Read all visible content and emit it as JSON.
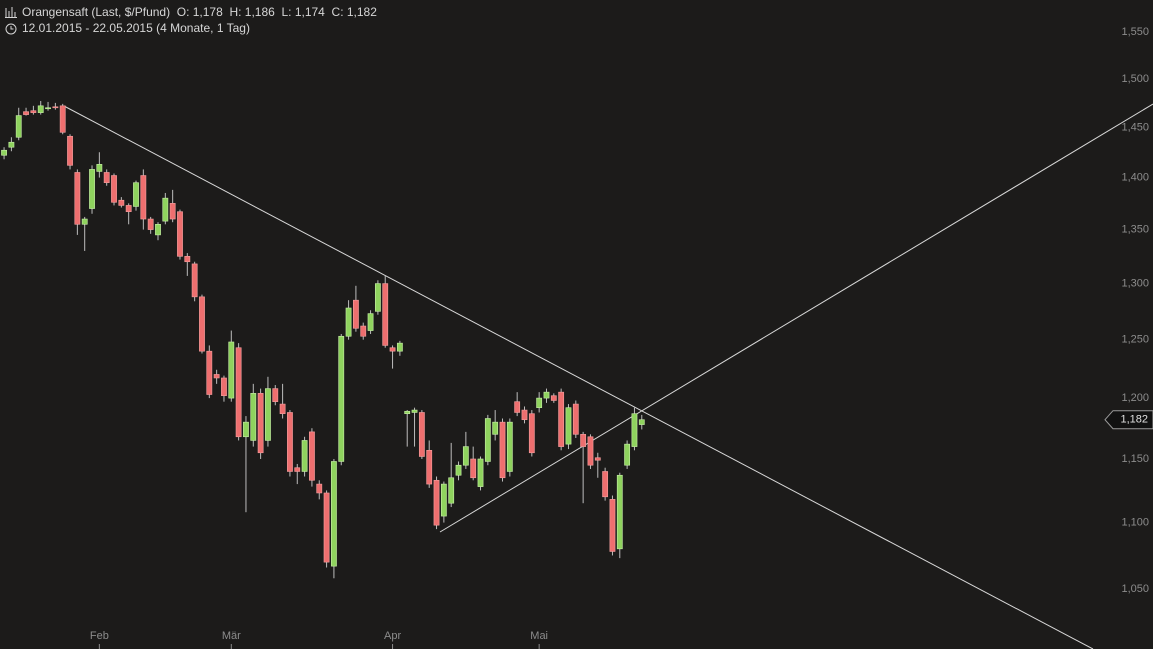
{
  "chart_data": {
    "type": "candlestick",
    "title": "Orangensaft (Last, $/Pfund)  O: 1,178  H: 1,186  L: 1,174  C: 1,182",
    "subtitle": "12.01.2015 - 22.05.2015 (4 Monate, 1 Tag)",
    "categories": [
      null,
      null,
      null,
      null,
      null,
      null,
      null,
      null,
      null,
      null,
      null,
      null,
      null,
      "Feb",
      null,
      null,
      null,
      null,
      null,
      null,
      null,
      null,
      null,
      null,
      null,
      null,
      null,
      null,
      null,
      null,
      null,
      "Mär",
      null,
      null,
      null,
      null,
      null,
      null,
      null,
      null,
      null,
      null,
      null,
      null,
      null,
      null,
      null,
      null,
      null,
      null,
      null,
      null,
      null,
      "Apr",
      null,
      null,
      null,
      null,
      null,
      null,
      null,
      null,
      null,
      null,
      null,
      null,
      null,
      null,
      null,
      null,
      null,
      null,
      null,
      "Mai",
      null,
      null,
      null,
      null,
      null,
      null,
      null,
      null,
      null,
      null,
      null,
      null,
      null,
      null
    ],
    "open": [
      1.422,
      1.43,
      1.44,
      1.466,
      1.467,
      1.465,
      1.469,
      1.471,
      1.472,
      1.441,
      1.405,
      1.355,
      1.37,
      1.406,
      1.405,
      1.402,
      1.378,
      1.373,
      1.372,
      1.402,
      1.36,
      1.345,
      1.358,
      1.375,
      1.367,
      1.325,
      1.318,
      1.288,
      1.24,
      1.22,
      1.217,
      1.2,
      1.243,
      1.168,
      1.165,
      1.204,
      1.165,
      1.208,
      1.195,
      1.188,
      1.143,
      1.14,
      1.172,
      1.13,
      1.123,
      1.067,
      1.148,
      1.253,
      1.285,
      1.262,
      1.258,
      1.275,
      1.3,
      1.243,
      1.24,
      1.187,
      1.188,
      1.188,
      1.157,
      1.133,
      1.105,
      1.115,
      1.137,
      1.145,
      1.15,
      1.128,
      1.148,
      1.17,
      1.18,
      1.14,
      1.197,
      1.19,
      1.187,
      1.192,
      1.2,
      1.202,
      1.205,
      1.162,
      1.195,
      1.17,
      1.168,
      1.151,
      1.14,
      1.118,
      1.08,
      1.145,
      1.16,
      1.178
    ],
    "high": [
      1.43,
      1.44,
      1.47,
      1.47,
      1.472,
      1.477,
      1.476,
      1.475,
      1.474,
      1.443,
      1.408,
      1.362,
      1.412,
      1.425,
      1.408,
      1.404,
      1.381,
      1.375,
      1.397,
      1.408,
      1.362,
      1.357,
      1.385,
      1.388,
      1.369,
      1.328,
      1.32,
      1.29,
      1.245,
      1.224,
      1.219,
      1.258,
      1.247,
      1.185,
      1.212,
      1.208,
      1.218,
      1.211,
      1.212,
      1.19,
      1.146,
      1.168,
      1.175,
      1.133,
      1.125,
      1.15,
      1.255,
      1.285,
      1.298,
      1.265,
      1.276,
      1.303,
      1.307,
      1.245,
      1.249,
      1.19,
      1.192,
      1.19,
      1.165,
      1.136,
      1.132,
      1.163,
      1.148,
      1.172,
      1.16,
      1.152,
      1.186,
      1.19,
      1.183,
      1.183,
      1.205,
      1.193,
      1.19,
      1.205,
      1.208,
      1.204,
      1.208,
      1.195,
      1.198,
      1.172,
      1.17,
      1.155,
      1.143,
      1.121,
      1.139,
      1.165,
      1.192,
      1.186
    ],
    "low": [
      1.418,
      1.426,
      1.437,
      1.462,
      1.463,
      1.463,
      1.467,
      1.468,
      1.443,
      1.408,
      1.345,
      1.33,
      1.365,
      1.4,
      1.392,
      1.373,
      1.371,
      1.355,
      1.368,
      1.35,
      1.346,
      1.34,
      1.355,
      1.357,
      1.322,
      1.307,
      1.284,
      1.238,
      1.2,
      1.212,
      1.197,
      1.197,
      1.165,
      1.108,
      1.16,
      1.15,
      1.16,
      1.194,
      1.183,
      1.136,
      1.13,
      1.136,
      1.128,
      1.118,
      1.066,
      1.058,
      1.145,
      1.25,
      1.257,
      1.25,
      1.255,
      1.272,
      1.243,
      1.225,
      1.236,
      1.16,
      1.16,
      1.15,
      1.127,
      1.095,
      1.1,
      1.112,
      1.133,
      1.142,
      1.133,
      1.125,
      1.145,
      1.165,
      1.132,
      1.136,
      1.185,
      1.179,
      1.152,
      1.188,
      1.196,
      1.196,
      1.157,
      1.158,
      1.167,
      1.115,
      1.142,
      1.135,
      1.117,
      1.075,
      1.073,
      1.142,
      1.157,
      1.174
    ],
    "close": [
      1.427,
      1.435,
      1.462,
      1.463,
      1.465,
      1.472,
      1.47,
      1.47,
      1.445,
      1.412,
      1.355,
      1.36,
      1.408,
      1.413,
      1.395,
      1.376,
      1.373,
      1.367,
      1.395,
      1.36,
      1.35,
      1.355,
      1.38,
      1.36,
      1.325,
      1.32,
      1.288,
      1.24,
      1.203,
      1.217,
      1.202,
      1.248,
      1.168,
      1.18,
      1.204,
      1.155,
      1.208,
      1.197,
      1.187,
      1.14,
      1.14,
      1.165,
      1.133,
      1.123,
      1.07,
      1.148,
      1.253,
      1.278,
      1.26,
      1.253,
      1.273,
      1.3,
      1.245,
      1.24,
      1.247,
      1.189,
      1.19,
      1.152,
      1.13,
      1.098,
      1.13,
      1.135,
      1.145,
      1.16,
      1.135,
      1.15,
      1.183,
      1.18,
      1.135,
      1.18,
      1.188,
      1.182,
      1.155,
      1.2,
      1.205,
      1.198,
      1.16,
      1.192,
      1.17,
      1.16,
      1.145,
      1.149,
      1.12,
      1.078,
      1.137,
      1.162,
      1.187,
      1.182
    ],
    "up_color": "#8fd35e",
    "down_color": "#ee6f6f",
    "log_scale": true,
    "ylim": [
      1.024,
      1.585
    ],
    "yticks": [
      {
        "value": 1.05,
        "label": "1,050"
      },
      {
        "value": 1.1,
        "label": "1,100"
      },
      {
        "value": 1.15,
        "label": "1,150"
      },
      {
        "value": 1.2,
        "label": "1,200"
      },
      {
        "value": 1.25,
        "label": "1,250"
      },
      {
        "value": 1.3,
        "label": "1,300"
      },
      {
        "value": 1.35,
        "label": "1,350"
      },
      {
        "value": 1.4,
        "label": "1,400"
      },
      {
        "value": 1.45,
        "label": "1,450"
      },
      {
        "value": 1.5,
        "label": "1,500"
      },
      {
        "value": 1.55,
        "label": "1,550"
      }
    ],
    "last_price_label": "1,182"
  }
}
